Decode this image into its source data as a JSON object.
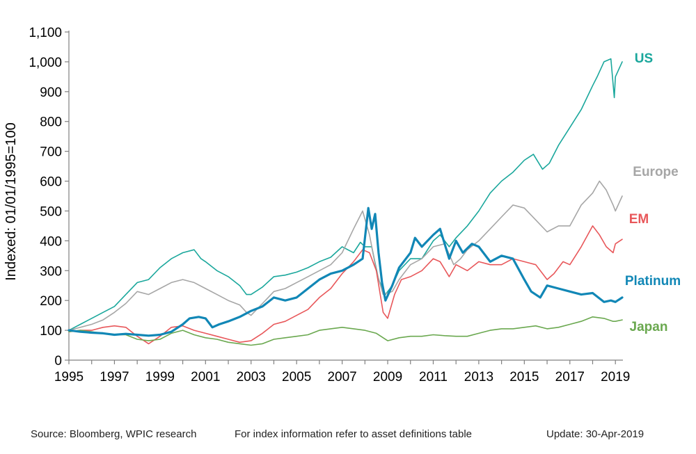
{
  "chart_data": {
    "type": "line",
    "ylabel": "Indexed: 01/01/1995=100",
    "xlabel": "",
    "ylim": [
      0,
      1100
    ],
    "xlim": [
      1995,
      2019.33
    ],
    "yticks": [
      0,
      100,
      200,
      300,
      400,
      500,
      600,
      700,
      800,
      900,
      1000,
      1100
    ],
    "ytick_labels": [
      "0",
      "100",
      "200",
      "300",
      "400",
      "500",
      "600",
      "700",
      "800",
      "900",
      "1,000",
      "1,100"
    ],
    "xticks": [
      1995,
      1997,
      1999,
      2001,
      2003,
      2005,
      2007,
      2009,
      2011,
      2013,
      2015,
      2017,
      2019
    ],
    "xtick_labels": [
      "1995",
      "1997",
      "1999",
      "2001",
      "2003",
      "2005",
      "2007",
      "2009",
      "2011",
      "2013",
      "2015",
      "2017",
      "2019"
    ],
    "grid": false,
    "legend": "direct labels at line ends (right)",
    "series": [
      {
        "name": "US",
        "color": "#1aa79c",
        "x": [
          1995,
          1995.5,
          1996,
          1996.5,
          1997,
          1997.5,
          1998,
          1998.5,
          1999,
          1999.5,
          2000,
          2000.5,
          2000.8,
          2001,
          2001.5,
          2002,
          2002.5,
          2002.8,
          2003,
          2003.5,
          2004,
          2004.5,
          2005,
          2005.5,
          2006,
          2006.5,
          2007,
          2007.5,
          2007.8,
          2008,
          2008.3,
          2008.6,
          2008.9,
          2009.2,
          2009.5,
          2010,
          2010.5,
          2011,
          2011.3,
          2011.7,
          2012,
          2012.5,
          2013,
          2013.5,
          2014,
          2014.5,
          2015,
          2015.4,
          2015.8,
          2016.1,
          2016.5,
          2017,
          2017.5,
          2018,
          2018.2,
          2018.5,
          2018.8,
          2018.95,
          2019,
          2019.3
        ],
        "y": [
          100,
          120,
          140,
          160,
          180,
          220,
          260,
          270,
          310,
          340,
          360,
          370,
          340,
          330,
          300,
          280,
          250,
          220,
          220,
          245,
          280,
          285,
          295,
          310,
          330,
          345,
          380,
          360,
          395,
          380,
          380,
          270,
          220,
          250,
          300,
          340,
          340,
          400,
          420,
          380,
          410,
          450,
          500,
          560,
          600,
          630,
          670,
          690,
          640,
          660,
          720,
          780,
          840,
          920,
          950,
          1000,
          1010,
          880,
          950,
          1000
        ]
      },
      {
        "name": "Europe",
        "color": "#a6a6a6",
        "x": [
          1995,
          1995.5,
          1996,
          1996.5,
          1997,
          1997.5,
          1998,
          1998.5,
          1999,
          1999.5,
          2000,
          2000.5,
          2001,
          2001.5,
          2002,
          2002.5,
          2002.8,
          2003,
          2003.5,
          2004,
          2004.5,
          2005,
          2005.5,
          2006,
          2006.5,
          2007,
          2007.5,
          2007.9,
          2008.2,
          2008.5,
          2008.8,
          2009.2,
          2009.5,
          2010,
          2010.5,
          2011,
          2011.5,
          2011.9,
          2012.2,
          2012.5,
          2013,
          2013.5,
          2014,
          2014.5,
          2015,
          2015.5,
          2016,
          2016.5,
          2017,
          2017.5,
          2018,
          2018.3,
          2018.6,
          2018.9,
          2019,
          2019.3
        ],
        "y": [
          100,
          110,
          120,
          135,
          160,
          190,
          230,
          220,
          240,
          260,
          270,
          260,
          240,
          220,
          200,
          185,
          160,
          150,
          190,
          230,
          240,
          260,
          280,
          300,
          320,
          360,
          440,
          500,
          420,
          300,
          220,
          230,
          270,
          320,
          340,
          380,
          390,
          320,
          340,
          370,
          400,
          440,
          480,
          520,
          510,
          470,
          430,
          450,
          450,
          520,
          560,
          600,
          570,
          520,
          500,
          550
        ]
      },
      {
        "name": "EM",
        "color": "#e8575a",
        "x": [
          1995,
          1995.5,
          1996,
          1996.5,
          1997,
          1997.5,
          1998,
          1998.5,
          1999,
          1999.5,
          2000,
          2000.5,
          2001,
          2001.5,
          2002,
          2002.5,
          2003,
          2003.5,
          2004,
          2004.5,
          2005,
          2005.5,
          2006,
          2006.5,
          2007,
          2007.5,
          2007.9,
          2008.2,
          2008.5,
          2008.8,
          2009,
          2009.3,
          2009.6,
          2010,
          2010.5,
          2011,
          2011.3,
          2011.7,
          2012,
          2012.5,
          2013,
          2013.5,
          2014,
          2014.5,
          2015,
          2015.5,
          2016,
          2016.3,
          2016.7,
          2017,
          2017.5,
          2018,
          2018.3,
          2018.6,
          2018.9,
          2019,
          2019.3
        ],
        "y": [
          95,
          100,
          100,
          110,
          115,
          110,
          80,
          55,
          80,
          110,
          115,
          100,
          90,
          80,
          70,
          60,
          65,
          90,
          120,
          130,
          150,
          170,
          210,
          240,
          290,
          330,
          370,
          360,
          300,
          160,
          140,
          220,
          270,
          280,
          300,
          340,
          330,
          280,
          320,
          300,
          330,
          320,
          320,
          340,
          330,
          320,
          270,
          290,
          330,
          320,
          380,
          450,
          420,
          380,
          360,
          390,
          405
        ]
      },
      {
        "name": "Japan",
        "color": "#6aa84f",
        "x": [
          1995,
          1995.5,
          1996,
          1996.5,
          1997,
          1997.5,
          1998,
          1998.5,
          1999,
          1999.5,
          2000,
          2000.5,
          2001,
          2001.5,
          2002,
          2002.5,
          2003,
          2003.5,
          2004,
          2004.5,
          2005,
          2005.5,
          2006,
          2006.5,
          2007,
          2007.5,
          2008,
          2008.5,
          2009,
          2009.5,
          2010,
          2010.5,
          2011,
          2011.5,
          2012,
          2012.5,
          2013,
          2013.5,
          2014,
          2014.5,
          2015,
          2015.5,
          2016,
          2016.5,
          2017,
          2017.5,
          2018,
          2018.5,
          2018.9,
          2019,
          2019.3
        ],
        "y": [
          95,
          100,
          95,
          90,
          85,
          85,
          70,
          65,
          70,
          90,
          100,
          85,
          75,
          70,
          60,
          55,
          50,
          55,
          70,
          75,
          80,
          85,
          100,
          105,
          110,
          105,
          100,
          90,
          65,
          75,
          80,
          80,
          85,
          82,
          80,
          80,
          90,
          100,
          105,
          105,
          110,
          115,
          105,
          110,
          120,
          130,
          145,
          140,
          130,
          130,
          135
        ]
      },
      {
        "name": "Platinum",
        "color": "#1187b6",
        "x": [
          1995,
          1995.5,
          1996,
          1996.5,
          1997,
          1997.5,
          1998,
          1998.5,
          1999,
          1999.5,
          2000,
          2000.3,
          2000.7,
          2001,
          2001.3,
          2001.6,
          2002,
          2002.5,
          2003,
          2003.5,
          2004,
          2004.5,
          2005,
          2005.5,
          2006,
          2006.5,
          2007,
          2007.5,
          2007.9,
          2008.15,
          2008.3,
          2008.45,
          2008.6,
          2008.75,
          2008.9,
          2009.2,
          2009.5,
          2010,
          2010.2,
          2010.5,
          2011,
          2011.3,
          2011.7,
          2012,
          2012.3,
          2012.7,
          2013,
          2013.5,
          2014,
          2014.5,
          2015,
          2015.3,
          2015.7,
          2016,
          2016.5,
          2017,
          2017.5,
          2018,
          2018.5,
          2018.8,
          2019,
          2019.3
        ],
        "y": [
          100,
          95,
          92,
          90,
          85,
          88,
          85,
          82,
          85,
          95,
          120,
          140,
          145,
          140,
          110,
          120,
          130,
          145,
          165,
          180,
          210,
          200,
          210,
          240,
          270,
          290,
          300,
          320,
          340,
          510,
          440,
          490,
          360,
          260,
          200,
          250,
          310,
          360,
          410,
          380,
          420,
          440,
          340,
          400,
          360,
          390,
          380,
          330,
          350,
          340,
          270,
          230,
          210,
          250,
          240,
          230,
          220,
          225,
          195,
          200,
          195,
          210
        ]
      }
    ]
  },
  "footer": {
    "source": "Source: Bloomberg, WPIC research",
    "note": "For index information refer to asset definitions table",
    "update": "Update: 30-Apr-2019"
  }
}
